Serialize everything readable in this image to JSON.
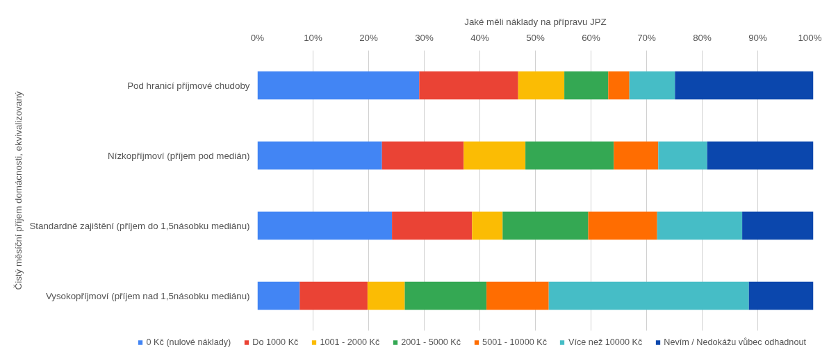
{
  "chart_data": {
    "type": "bar",
    "orientation": "horizontal",
    "stacked": true,
    "xlabel": "Jaké měli náklady na přípravu JPZ",
    "ylabel": "Čistý měsíční příjem domácnosti, ekvivalizovaný",
    "categories": [
      "Pod hranicí příjmové chudoby",
      "Nízkopříjmoví (příjem pod medián)",
      "Standardně zajištění (příjem do 1,5násobku mediánu)",
      "Vysokopříjmoví (příjem nad 1,5násobku mediánu)"
    ],
    "xlim": [
      0,
      100
    ],
    "xticks": [
      {
        "value": 0,
        "label": "0%"
      },
      {
        "value": 10,
        "label": "10%"
      },
      {
        "value": 20,
        "label": "20%"
      },
      {
        "value": 30,
        "label": "30%"
      },
      {
        "value": 40,
        "label": "40%"
      },
      {
        "value": 50,
        "label": "50%"
      },
      {
        "value": 60,
        "label": "60%"
      },
      {
        "value": 70,
        "label": "70%"
      },
      {
        "value": 80,
        "label": "80%"
      },
      {
        "value": 90,
        "label": "90%"
      },
      {
        "value": 100,
        "label": "100%"
      }
    ],
    "grid": "x",
    "legend": "bottom",
    "series": [
      {
        "name": "0 Kč (nulové náklady)",
        "color": "#4285f4",
        "values": [
          29.1,
          22.4,
          24.2,
          7.6
        ]
      },
      {
        "name": "Do 1000 Kč",
        "color": "#ea4335",
        "values": [
          17.8,
          14.7,
          14.4,
          12.2
        ]
      },
      {
        "name": "1001 - 2000 Kč",
        "color": "#fbbc04",
        "values": [
          8.3,
          11.1,
          5.5,
          6.7
        ]
      },
      {
        "name": "2001 - 5000 Kč",
        "color": "#34a853",
        "values": [
          7.9,
          15.9,
          15.4,
          14.7
        ]
      },
      {
        "name": "5001 - 10000 Kč",
        "color": "#ff6d01",
        "values": [
          3.8,
          8.0,
          12.4,
          11.2
        ]
      },
      {
        "name": "Více než 10000 Kč",
        "color": "#46bdc6",
        "values": [
          8.2,
          8.8,
          15.3,
          36.0
        ]
      },
      {
        "name": "Nevím / Nedokážu vůbec odhadnout",
        "color": "#0b47ad",
        "values": [
          24.9,
          19.1,
          12.8,
          11.6
        ]
      }
    ]
  }
}
